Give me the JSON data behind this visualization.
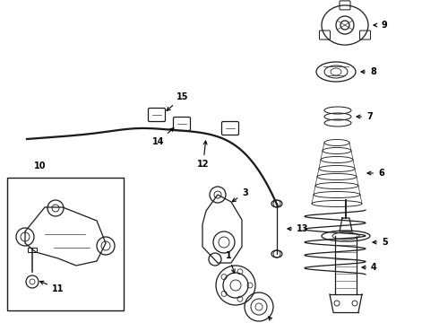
{
  "bg_color": "#ffffff",
  "line_color": "#1a1a1a",
  "fig_width": 4.9,
  "fig_height": 3.6,
  "dpi": 100,
  "label_fontsize": 7.0
}
